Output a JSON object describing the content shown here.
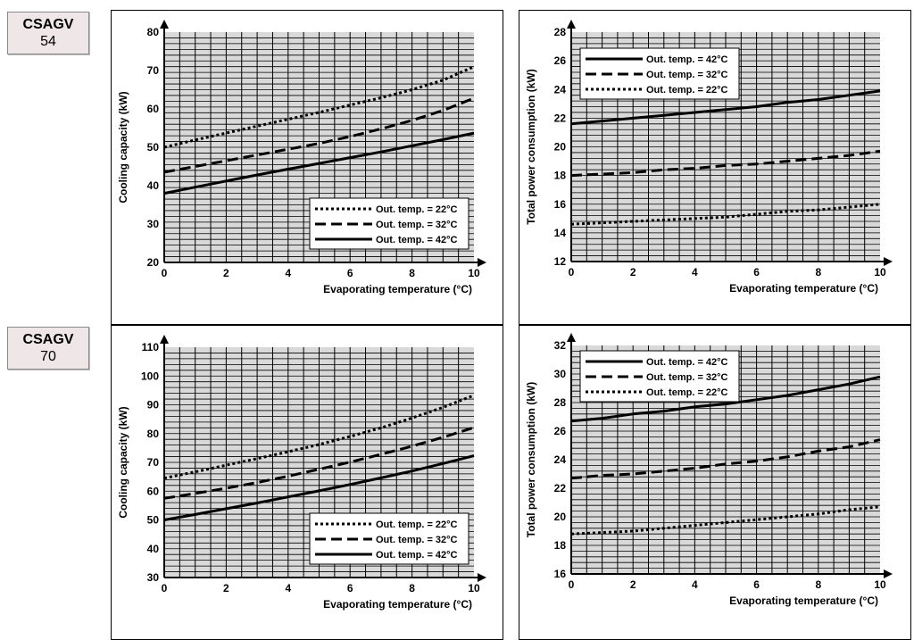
{
  "models": [
    {
      "name": "CSAGV",
      "number": "54"
    },
    {
      "name": "CSAGV",
      "number": "70"
    }
  ],
  "chart_data": [
    {
      "id": "cap54",
      "type": "line",
      "xlabel": "Evaporating temperature (°C)",
      "ylabel": "Cooling capacity (kW)",
      "xlim": [
        0,
        10
      ],
      "ylim": [
        20,
        80
      ],
      "xticks": [
        0,
        2,
        4,
        6,
        8,
        10
      ],
      "yticks": [
        20,
        30,
        40,
        50,
        60,
        70,
        80
      ],
      "grid": true,
      "legend_position": "bottom-right",
      "x": [
        0,
        1,
        2,
        3,
        4,
        5,
        6,
        7,
        8,
        9,
        10
      ],
      "series": [
        {
          "name": "Out. temp. = 22°C",
          "style": "dotted",
          "values": [
            50.0,
            51.9,
            53.7,
            55.5,
            57.3,
            59.1,
            61.0,
            62.9,
            65.0,
            67.5,
            71.0
          ]
        },
        {
          "name": "Out. temp. = 32°C",
          "style": "dashed",
          "values": [
            43.5,
            45.0,
            46.5,
            48.0,
            49.5,
            51.0,
            52.8,
            54.8,
            57.0,
            59.6,
            62.8
          ]
        },
        {
          "name": "Out. temp. = 42°C",
          "style": "solid",
          "values": [
            38.0,
            39.6,
            41.2,
            42.8,
            44.3,
            45.8,
            47.3,
            48.8,
            50.4,
            52.0,
            53.7
          ]
        }
      ]
    },
    {
      "id": "pow54",
      "type": "line",
      "xlabel": "Evaporating temperature (°C)",
      "ylabel": "Total power consumption (kW)",
      "xlim": [
        0,
        10
      ],
      "ylim": [
        12,
        28
      ],
      "xticks": [
        0,
        2,
        4,
        6,
        8,
        10
      ],
      "yticks": [
        12,
        14,
        16,
        18,
        20,
        22,
        24,
        26,
        28
      ],
      "grid": true,
      "legend_position": "top-left",
      "x": [
        0,
        1,
        2,
        3,
        4,
        5,
        6,
        7,
        8,
        9,
        10
      ],
      "series": [
        {
          "name": "Out. temp. = 42°C",
          "style": "solid",
          "values": [
            21.6,
            21.8,
            22.0,
            22.2,
            22.4,
            22.6,
            22.8,
            23.1,
            23.3,
            23.6,
            23.9
          ]
        },
        {
          "name": "Out. temp. = 32°C",
          "style": "dashed",
          "values": [
            18.0,
            18.1,
            18.2,
            18.4,
            18.5,
            18.7,
            18.8,
            19.0,
            19.2,
            19.4,
            19.7
          ]
        },
        {
          "name": "Out. temp. = 22°C",
          "style": "dotted",
          "values": [
            14.6,
            14.7,
            14.8,
            14.9,
            15.0,
            15.1,
            15.3,
            15.5,
            15.6,
            15.8,
            16.0
          ]
        }
      ]
    },
    {
      "id": "cap70",
      "type": "line",
      "xlabel": "Evaporating temperature (°C)",
      "ylabel": "Cooling capacity (kW)",
      "xlim": [
        0,
        10
      ],
      "ylim": [
        30,
        110
      ],
      "xticks": [
        0,
        2,
        4,
        6,
        8,
        10
      ],
      "yticks": [
        30,
        40,
        50,
        60,
        70,
        80,
        90,
        100,
        110
      ],
      "grid": true,
      "legend_position": "bottom-right",
      "x": [
        0,
        1,
        2,
        3,
        4,
        5,
        6,
        7,
        8,
        9,
        10
      ],
      "series": [
        {
          "name": "Out. temp. = 22°C",
          "style": "dotted",
          "values": [
            64.5,
            66.7,
            69.0,
            71.3,
            73.7,
            76.2,
            79.0,
            82.0,
            85.4,
            89.1,
            93.3
          ]
        },
        {
          "name": "Out. temp. = 32°C",
          "style": "dashed",
          "values": [
            57.5,
            59.2,
            61.0,
            63.0,
            65.2,
            67.6,
            70.1,
            72.8,
            75.6,
            78.7,
            82.1
          ]
        },
        {
          "name": "Out. temp. = 42°C",
          "style": "solid",
          "values": [
            50.0,
            51.9,
            53.9,
            55.9,
            58.0,
            60.1,
            62.3,
            64.6,
            67.0,
            69.6,
            72.3
          ]
        }
      ]
    },
    {
      "id": "pow70",
      "type": "line",
      "xlabel": "Evaporating temperature (°C)",
      "ylabel": "Total power consumption (kW)",
      "xlim": [
        0,
        10
      ],
      "ylim": [
        16,
        32
      ],
      "xticks": [
        0,
        2,
        4,
        6,
        8,
        10
      ],
      "yticks": [
        16,
        18,
        20,
        22,
        24,
        26,
        28,
        30,
        32
      ],
      "grid": true,
      "legend_position": "top-left",
      "x": [
        0,
        1,
        2,
        3,
        4,
        5,
        6,
        7,
        8,
        9,
        10
      ],
      "series": [
        {
          "name": "Out. temp. = 42°C",
          "style": "solid",
          "values": [
            26.7,
            26.9,
            27.2,
            27.4,
            27.7,
            27.9,
            28.2,
            28.5,
            28.9,
            29.3,
            29.8
          ]
        },
        {
          "name": "Out. temp. = 32°C",
          "style": "dashed",
          "values": [
            22.7,
            22.9,
            23.0,
            23.2,
            23.4,
            23.7,
            23.9,
            24.2,
            24.6,
            24.9,
            25.4
          ]
        },
        {
          "name": "Out. temp. = 22°C",
          "style": "dotted",
          "values": [
            18.8,
            18.9,
            19.0,
            19.2,
            19.4,
            19.6,
            19.8,
            20.0,
            20.2,
            20.5,
            20.7
          ]
        }
      ]
    }
  ]
}
